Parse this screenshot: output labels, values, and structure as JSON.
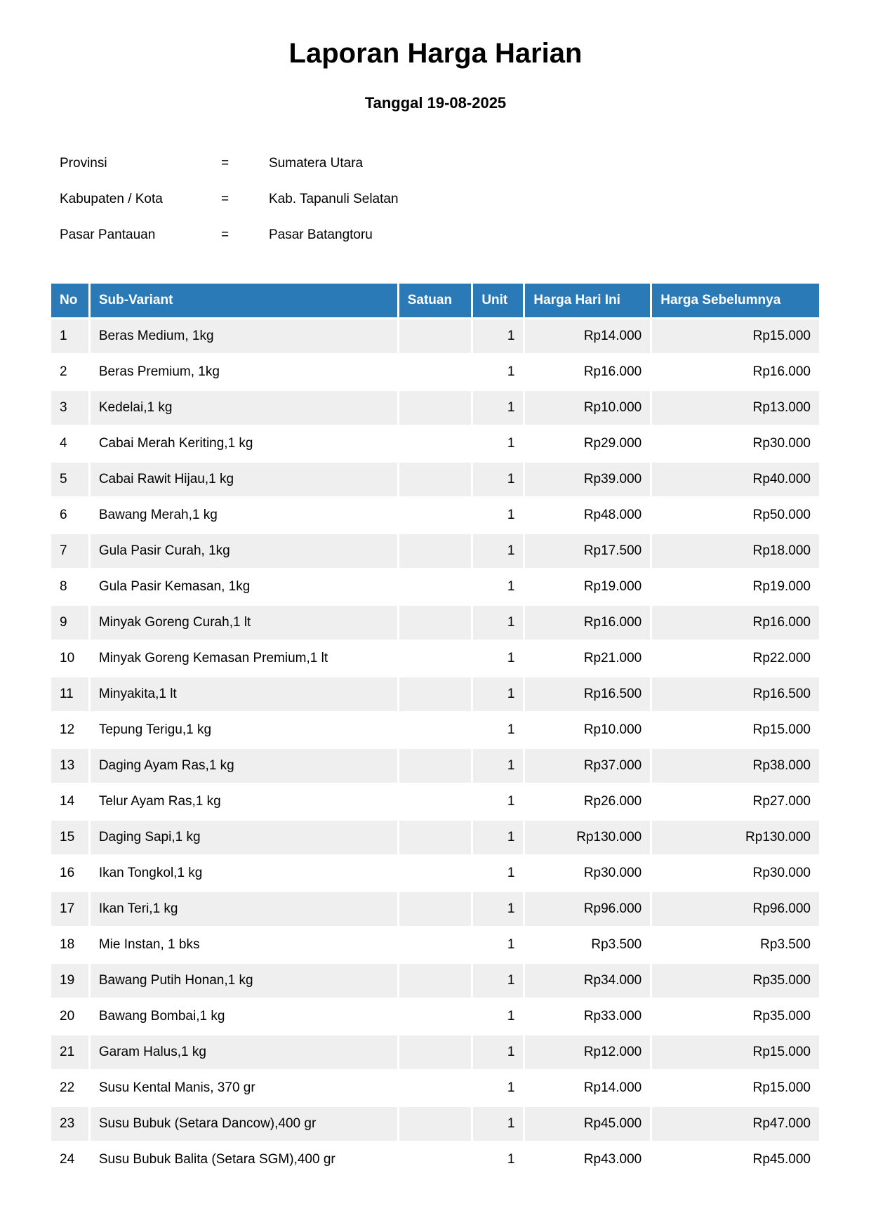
{
  "title": "Laporan Harga Harian",
  "subtitle": "Tanggal 19-08-2025",
  "info": [
    {
      "label": "Provinsi",
      "sep": "=",
      "value": "Sumatera Utara"
    },
    {
      "label": "Kabupaten / Kota",
      "sep": "=",
      "value": "Kab. Tapanuli Selatan"
    },
    {
      "label": "Pasar Pantauan",
      "sep": "=",
      "value": "Pasar Batangtoru"
    }
  ],
  "colors": {
    "header": "#2a7ab8",
    "stripe": "#efefef"
  },
  "table": {
    "headers": [
      "No",
      "Sub-Variant",
      "Satuan",
      "Unit",
      "Harga Hari Ini",
      "Harga Sebelumnya"
    ],
    "rows": [
      [
        "1",
        "Beras Medium, 1kg",
        "",
        "1",
        "Rp14.000",
        "Rp15.000"
      ],
      [
        "2",
        "Beras Premium, 1kg",
        "",
        "1",
        "Rp16.000",
        "Rp16.000"
      ],
      [
        "3",
        "Kedelai,1 kg",
        "",
        "1",
        "Rp10.000",
        "Rp13.000"
      ],
      [
        "4",
        "Cabai Merah Keriting,1 kg",
        "",
        "1",
        "Rp29.000",
        "Rp30.000"
      ],
      [
        "5",
        "Cabai Rawit Hijau,1 kg",
        "",
        "1",
        "Rp39.000",
        "Rp40.000"
      ],
      [
        "6",
        "Bawang Merah,1 kg",
        "",
        "1",
        "Rp48.000",
        "Rp50.000"
      ],
      [
        "7",
        "Gula Pasir Curah, 1kg",
        "",
        "1",
        "Rp17.500",
        "Rp18.000"
      ],
      [
        "8",
        "Gula Pasir Kemasan, 1kg",
        "",
        "1",
        "Rp19.000",
        "Rp19.000"
      ],
      [
        "9",
        "Minyak Goreng Curah,1 lt",
        "",
        "1",
        "Rp16.000",
        "Rp16.000"
      ],
      [
        "10",
        "Minyak Goreng Kemasan Premium,1 lt",
        "",
        "1",
        "Rp21.000",
        "Rp22.000"
      ],
      [
        "11",
        "Minyakita,1 lt",
        "",
        "1",
        "Rp16.500",
        "Rp16.500"
      ],
      [
        "12",
        "Tepung Terigu,1 kg",
        "",
        "1",
        "Rp10.000",
        "Rp15.000"
      ],
      [
        "13",
        "Daging Ayam Ras,1 kg",
        "",
        "1",
        "Rp37.000",
        "Rp38.000"
      ],
      [
        "14",
        "Telur Ayam Ras,1 kg",
        "",
        "1",
        "Rp26.000",
        "Rp27.000"
      ],
      [
        "15",
        "Daging Sapi,1 kg",
        "",
        "1",
        "Rp130.000",
        "Rp130.000"
      ],
      [
        "16",
        "Ikan Tongkol,1 kg",
        "",
        "1",
        "Rp30.000",
        "Rp30.000"
      ],
      [
        "17",
        "Ikan Teri,1 kg",
        "",
        "1",
        "Rp96.000",
        "Rp96.000"
      ],
      [
        "18",
        "Mie Instan, 1 bks",
        "",
        "1",
        "Rp3.500",
        "Rp3.500"
      ],
      [
        "19",
        "Bawang Putih Honan,1 kg",
        "",
        "1",
        "Rp34.000",
        "Rp35.000"
      ],
      [
        "20",
        "Bawang Bombai,1 kg",
        "",
        "1",
        "Rp33.000",
        "Rp35.000"
      ],
      [
        "21",
        "Garam Halus,1 kg",
        "",
        "1",
        "Rp12.000",
        "Rp15.000"
      ],
      [
        "22",
        "Susu Kental Manis, 370 gr",
        "",
        "1",
        "Rp14.000",
        "Rp15.000"
      ],
      [
        "23",
        "Susu Bubuk (Setara Dancow),400 gr",
        "",
        "1",
        "Rp45.000",
        "Rp47.000"
      ],
      [
        "24",
        "Susu Bubuk Balita (Setara SGM),400 gr",
        "",
        "1",
        "Rp43.000",
        "Rp45.000"
      ]
    ]
  }
}
